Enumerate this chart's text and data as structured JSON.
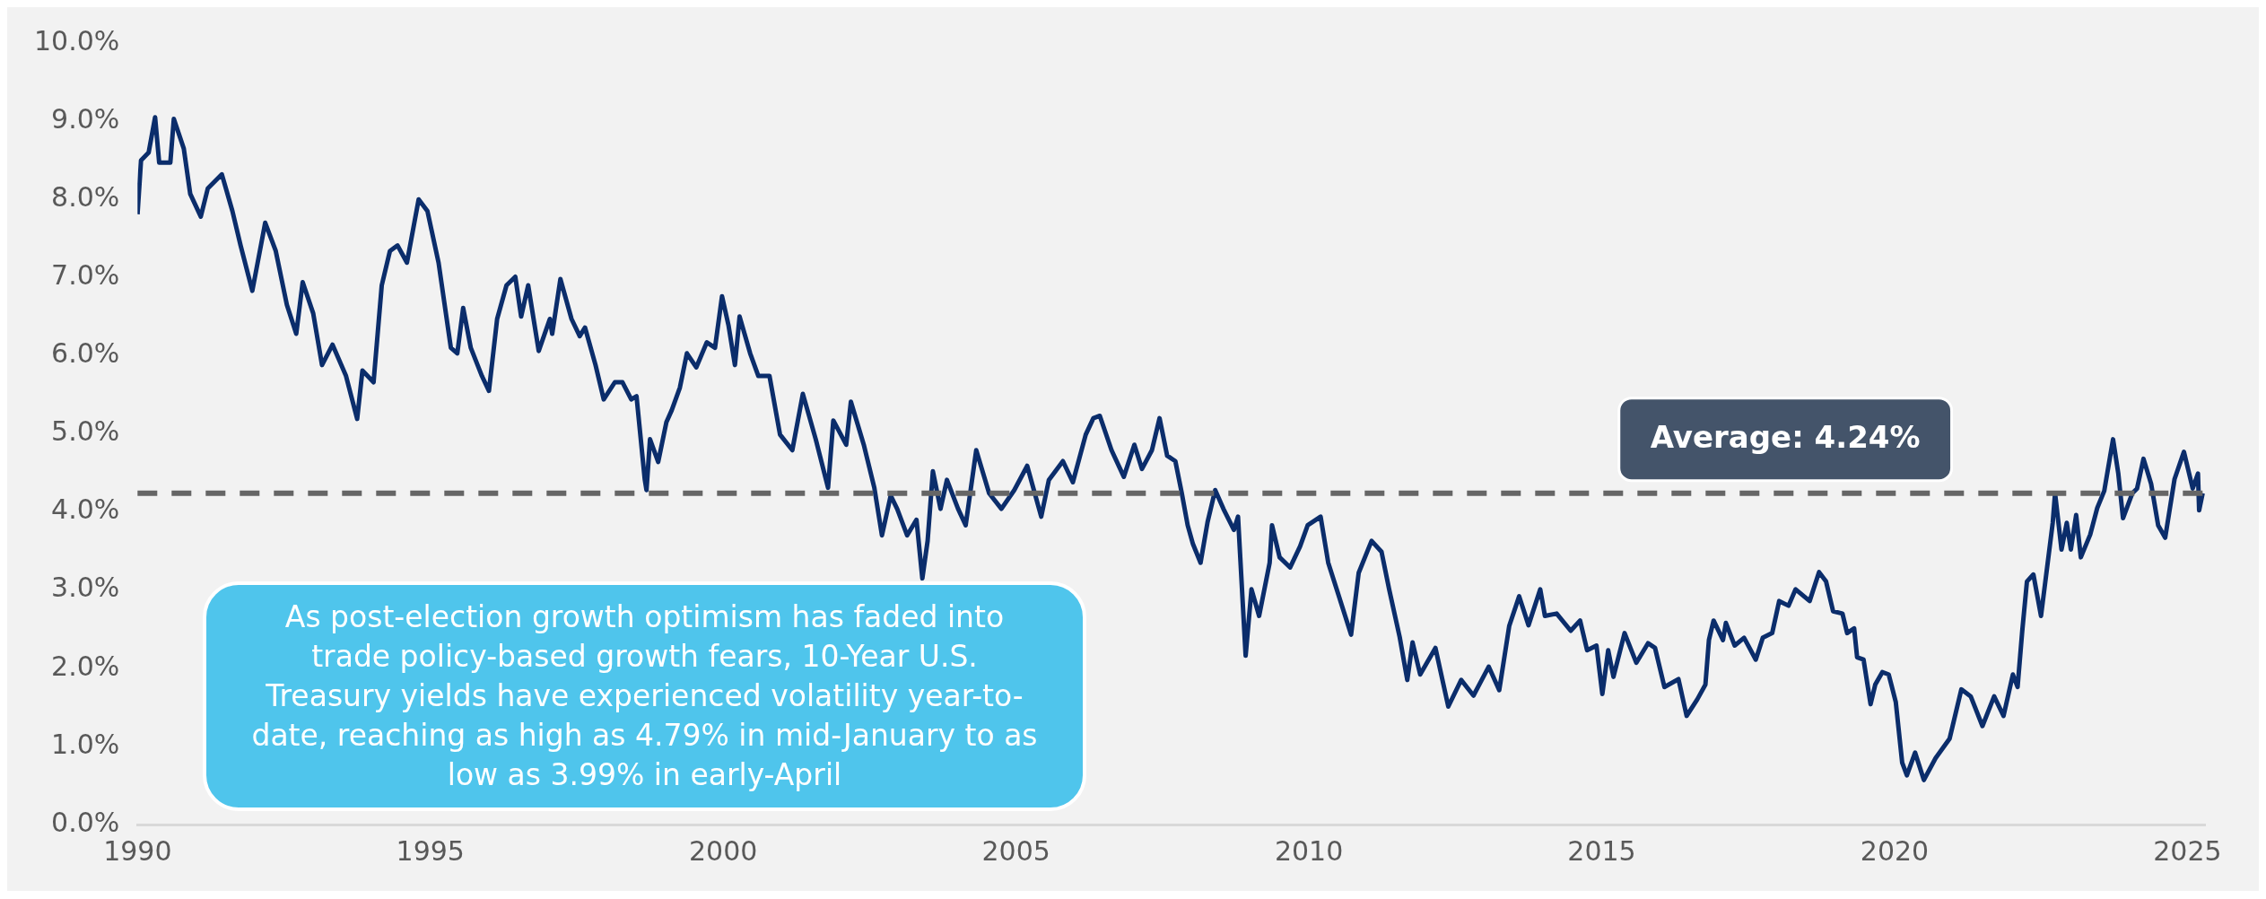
{
  "chart_data": {
    "type": "line",
    "x": [
      1990.0,
      1990.06,
      1990.19,
      1990.3,
      1990.37,
      1990.56,
      1990.62,
      1990.79,
      1990.9,
      1991.08,
      1991.2,
      1991.44,
      1991.62,
      1991.76,
      1991.96,
      1992.18,
      1992.36,
      1992.55,
      1992.71,
      1992.82,
      1993.0,
      1993.15,
      1993.33,
      1993.56,
      1993.75,
      1993.84,
      1994.03,
      1994.17,
      1994.31,
      1994.44,
      1994.6,
      1994.8,
      1994.95,
      1995.14,
      1995.35,
      1995.46,
      1995.56,
      1995.69,
      1995.88,
      1996.0,
      1996.14,
      1996.3,
      1996.45,
      1996.55,
      1996.67,
      1996.85,
      1997.04,
      1997.08,
      1997.22,
      1997.41,
      1997.55,
      1997.64,
      1997.82,
      1997.96,
      1998.15,
      1998.28,
      1998.43,
      1998.52,
      1998.66,
      1998.69,
      1998.75,
      1998.89,
      1999.03,
      1999.12,
      1999.26,
      1999.38,
      1999.54,
      1999.72,
      1999.86,
      1999.98,
      2000.09,
      2000.2,
      2000.28,
      2000.46,
      2000.6,
      2000.79,
      2000.97,
      2001.18,
      2001.36,
      2001.58,
      2001.79,
      2001.88,
      2002.1,
      2002.18,
      2002.4,
      2002.58,
      2002.71,
      2002.86,
      2002.97,
      2003.14,
      2003.3,
      2003.4,
      2003.49,
      2003.58,
      2003.71,
      2003.82,
      2004.01,
      2004.14,
      2004.32,
      2004.54,
      2004.75,
      2004.97,
      2005.19,
      2005.43,
      2005.56,
      2005.8,
      2005.97,
      2006.19,
      2006.32,
      2006.43,
      2006.63,
      2006.84,
      2007.02,
      2007.15,
      2007.32,
      2007.45,
      2007.58,
      2007.72,
      2007.83,
      2007.93,
      2008.02,
      2008.15,
      2008.27,
      2008.4,
      2008.54,
      2008.72,
      2008.79,
      2008.92,
      2009.02,
      2009.15,
      2009.33,
      2009.37,
      2009.5,
      2009.68,
      2009.85,
      2009.98,
      2010.2,
      2010.33,
      2010.5,
      2010.72,
      2010.85,
      2011.07,
      2011.24,
      2011.37,
      2011.55,
      2011.68,
      2011.77,
      2011.9,
      2012.16,
      2012.38,
      2012.6,
      2012.81,
      2013.07,
      2013.25,
      2013.42,
      2013.59,
      2013.75,
      2013.95,
      2014.03,
      2014.23,
      2014.47,
      2014.63,
      2014.75,
      2014.91,
      2015.01,
      2015.11,
      2015.2,
      2015.39,
      2015.59,
      2015.79,
      2015.91,
      2016.07,
      2016.31,
      2016.45,
      2016.63,
      2016.77,
      2016.83,
      2016.91,
      2017.07,
      2017.12,
      2017.27,
      2017.43,
      2017.63,
      2017.75,
      2017.91,
      2018.03,
      2018.19,
      2018.31,
      2018.55,
      2018.71,
      2018.83,
      2018.95,
      2019.11,
      2019.19,
      2019.31,
      2019.36,
      2019.47,
      2019.59,
      2019.67,
      2019.79,
      2019.9,
      2020.02,
      2020.13,
      2020.21,
      2020.35,
      2020.5,
      2020.7,
      2020.94,
      2021.14,
      2021.3,
      2021.5,
      2021.7,
      2021.86,
      2022.02,
      2022.1,
      2022.18,
      2022.26,
      2022.37,
      2022.5,
      2022.7,
      2022.74,
      2022.85,
      2022.94,
      2023.01,
      2023.1,
      2023.18,
      2023.34,
      2023.46,
      2023.58,
      2023.73,
      2023.82,
      2023.9,
      2024.06,
      2024.14,
      2024.25,
      2024.38,
      2024.5,
      2024.62,
      2024.78,
      2024.94,
      2025.09,
      2025.18,
      2025.2,
      2025.26
    ],
    "series": [
      {
        "color": "#0b2d6b",
        "values": [
          7.81,
          8.5,
          8.6,
          9.05,
          8.47,
          8.47,
          9.03,
          8.65,
          8.07,
          7.78,
          8.14,
          8.32,
          7.85,
          7.41,
          6.83,
          7.7,
          7.34,
          6.65,
          6.28,
          6.94,
          6.54,
          5.88,
          6.14,
          5.74,
          5.19,
          5.81,
          5.66,
          6.9,
          7.34,
          7.41,
          7.19,
          8.0,
          7.85,
          7.19,
          6.1,
          6.03,
          6.61,
          6.1,
          5.74,
          5.55,
          6.47,
          6.9,
          7.01,
          6.5,
          6.9,
          6.06,
          6.47,
          6.28,
          6.98,
          6.47,
          6.25,
          6.36,
          5.88,
          5.44,
          5.66,
          5.66,
          5.44,
          5.48,
          4.42,
          4.28,
          4.93,
          4.64,
          5.15,
          5.3,
          5.59,
          6.03,
          5.85,
          6.17,
          6.1,
          6.76,
          6.39,
          5.88,
          6.5,
          6.03,
          5.74,
          5.74,
          4.99,
          4.79,
          5.51,
          4.93,
          4.31,
          5.17,
          4.86,
          5.41,
          4.86,
          4.31,
          3.7,
          4.21,
          4.04,
          3.7,
          3.9,
          3.15,
          3.63,
          4.52,
          4.04,
          4.41,
          4.04,
          3.83,
          4.79,
          4.24,
          4.04,
          4.28,
          4.59,
          3.94,
          4.41,
          4.65,
          4.38,
          4.99,
          5.2,
          5.23,
          4.79,
          4.45,
          4.86,
          4.55,
          4.79,
          5.2,
          4.72,
          4.65,
          4.24,
          3.83,
          3.59,
          3.35,
          3.87,
          4.28,
          4.04,
          3.77,
          3.94,
          2.16,
          3.01,
          2.67,
          3.35,
          3.83,
          3.42,
          3.29,
          3.56,
          3.83,
          3.94,
          3.35,
          2.95,
          2.43,
          3.22,
          3.63,
          3.49,
          3.01,
          2.4,
          1.85,
          2.33,
          1.92,
          2.26,
          1.51,
          1.85,
          1.65,
          2.02,
          1.72,
          2.54,
          2.92,
          2.55,
          3.01,
          2.67,
          2.7,
          2.48,
          2.61,
          2.23,
          2.29,
          1.67,
          2.23,
          1.89,
          2.45,
          2.07,
          2.32,
          2.26,
          1.76,
          1.86,
          1.39,
          1.6,
          1.79,
          2.36,
          2.61,
          2.36,
          2.58,
          2.29,
          2.39,
          2.11,
          2.39,
          2.45,
          2.86,
          2.8,
          3.01,
          2.86,
          3.23,
          3.11,
          2.73,
          2.7,
          2.45,
          2.51,
          2.14,
          2.11,
          1.54,
          1.79,
          1.95,
          1.92,
          1.57,
          0.79,
          0.63,
          0.92,
          0.57,
          0.85,
          1.1,
          1.73,
          1.64,
          1.26,
          1.64,
          1.39,
          1.92,
          1.76,
          2.48,
          3.11,
          3.2,
          2.67,
          3.86,
          4.24,
          3.52,
          3.86,
          3.52,
          3.96,
          3.42,
          3.71,
          4.05,
          4.27,
          4.93,
          4.49,
          3.92,
          4.24,
          4.3,
          4.68,
          4.36,
          3.83,
          3.67,
          4.42,
          4.77,
          4.3,
          4.49,
          4.02,
          4.24
        ]
      }
    ],
    "xlim": [
      1990,
      2025.3
    ],
    "xticks": [
      1990,
      1995,
      2000,
      2005,
      2010,
      2015,
      2020,
      2025
    ],
    "ylim": [
      0,
      10
    ],
    "yticks": [
      {
        "value": 0,
        "label": "0.0%"
      },
      {
        "value": 1,
        "label": "1.0%"
      },
      {
        "value": 2,
        "label": "2.0%"
      },
      {
        "value": 3,
        "label": "3.0%"
      },
      {
        "value": 4,
        "label": "4.0%"
      },
      {
        "value": 5,
        "label": "5.0%"
      },
      {
        "value": 6,
        "label": "6.0%"
      },
      {
        "value": 7,
        "label": "7.0%"
      },
      {
        "value": 8,
        "label": "8.0%"
      },
      {
        "value": 9,
        "label": "9.0%"
      },
      {
        "value": 10,
        "label": "10.0%"
      }
    ],
    "ref_lines": [
      {
        "axis": "y",
        "value": 4.24,
        "label": "Average: 4.24%",
        "color": "#666666",
        "line_style": "dashed"
      }
    ],
    "annotations": [
      "As post-election growth optimism has faded into trade policy-based growth fears, 10-Year U.S. Treasury yields have experienced volatility year-to-date, reaching as high as 4.79% in mid-January to as low as 3.99% in early-April"
    ],
    "grid": false,
    "legend": false,
    "marker": "none",
    "line_style": "solid"
  }
}
